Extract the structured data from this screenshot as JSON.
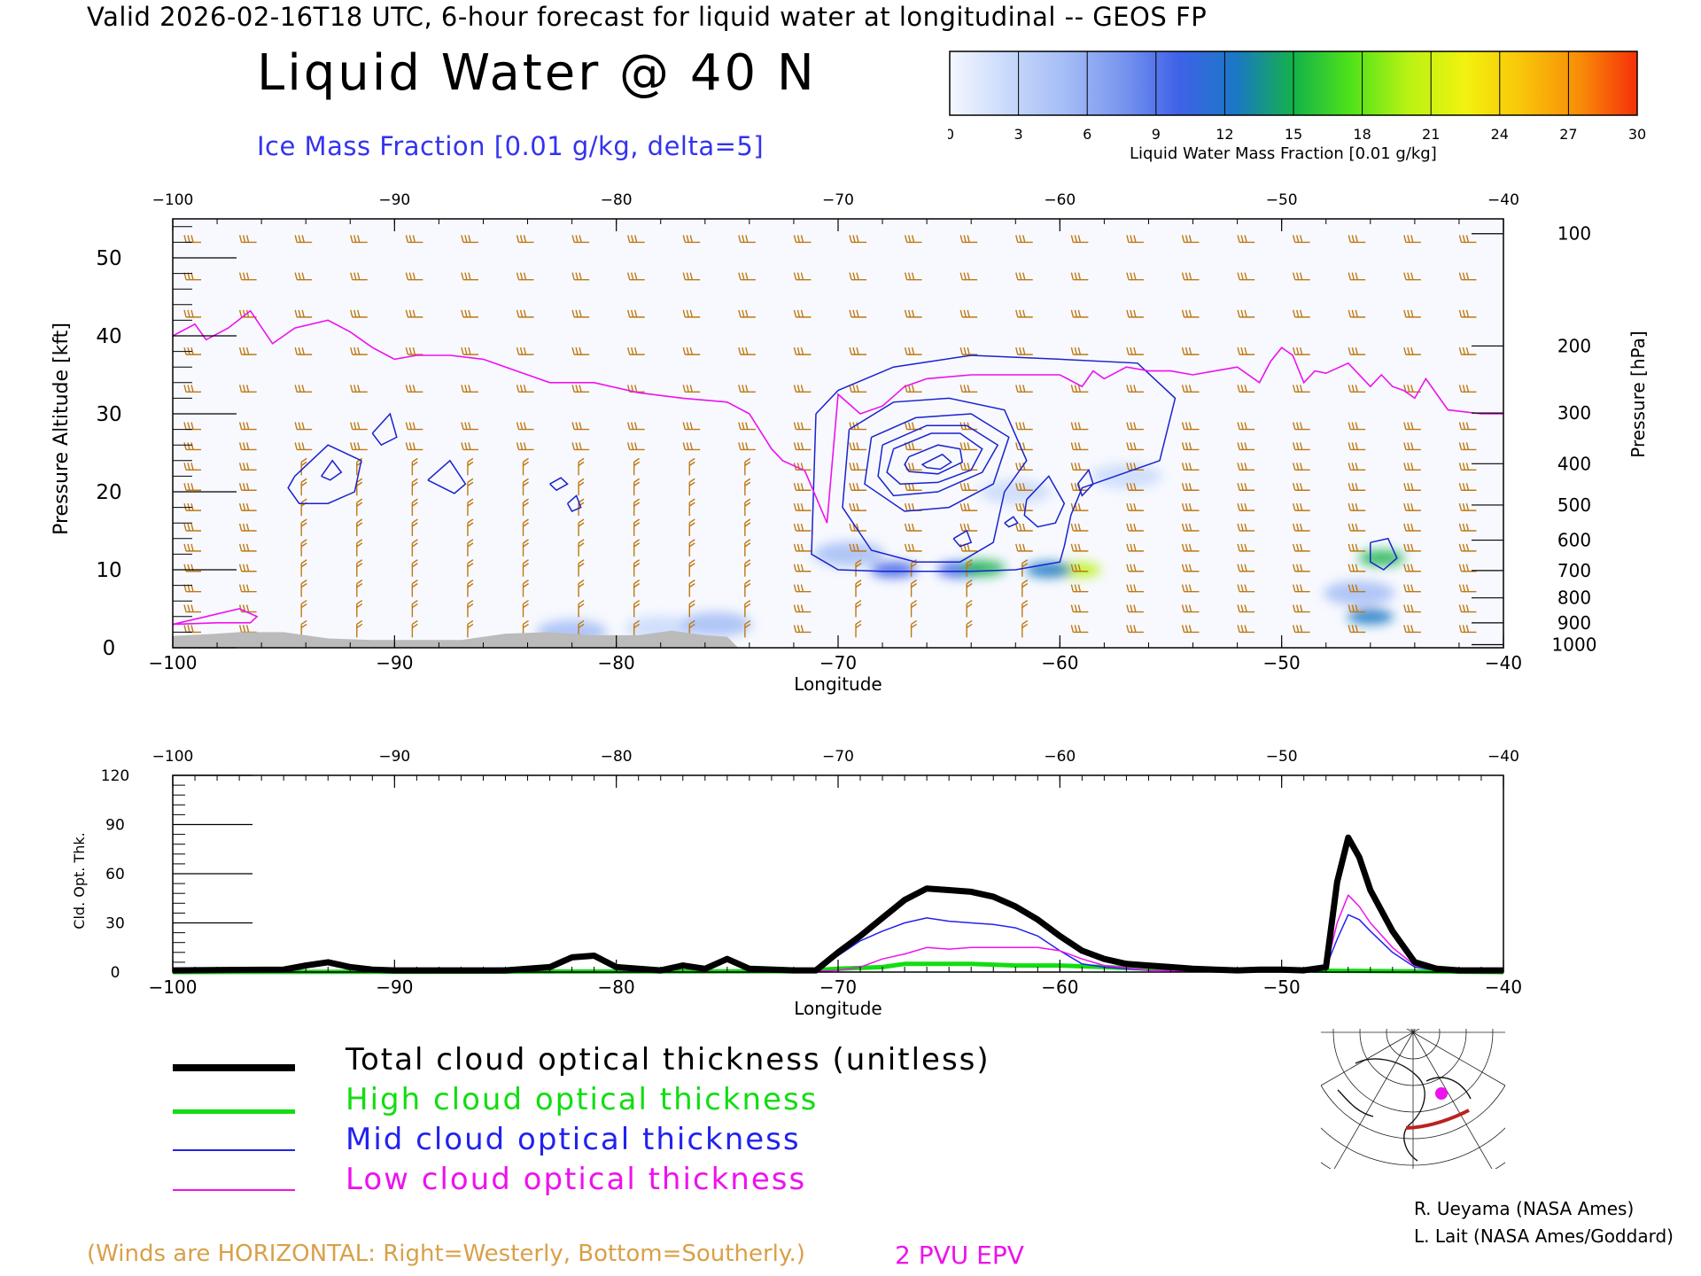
{
  "header": {
    "valid_title": "Valid 2026-02-16T18 UTC, 6-hour forecast for liquid water at longitudinal -- GEOS FP",
    "main_title": "Liquid Water @ 40 N",
    "ice_label": "Ice Mass Fraction [0.01 g/kg, delta=5]"
  },
  "colorbar": {
    "ticks": [
      "0",
      "3",
      "6",
      "9",
      "12",
      "15",
      "18",
      "21",
      "24",
      "27",
      "30"
    ],
    "label": "Liquid Water Mass Fraction [0.01 g/kg]",
    "colors": [
      "#f4f7fe",
      "#c9dafb",
      "#a5bdf6",
      "#7996ef",
      "#3f62e8",
      "#1a78c4",
      "#14b24a",
      "#4fe21a",
      "#b9f214",
      "#f2f20e",
      "#f9c40a",
      "#f88c07",
      "#f5300a"
    ]
  },
  "colors": {
    "wind_barb": "#c07812",
    "epv": "#ee11ee",
    "ice_contour": "#1a22cc",
    "terrain": "#bbbbbb"
  },
  "chart_data": [
    {
      "type": "heatmap",
      "name": "liquid-water-cross-section",
      "title": "Liquid Water @ 40 N",
      "xlabel": "Longitude",
      "ylabel": "Pressure Altitude [kft]",
      "ylabel_right": "Pressure [hPa]",
      "xlim": [
        -100,
        -40
      ],
      "ylim": [
        0,
        55
      ],
      "x_ticks": [
        "-100",
        "-90",
        "-80",
        "-70",
        "-60",
        "-50",
        "-40"
      ],
      "y_ticks": [
        "0",
        "10",
        "20",
        "30",
        "40",
        "50"
      ],
      "pressure_ticks": [
        "100",
        "200",
        "300",
        "400",
        "500",
        "600",
        "700",
        "800",
        "900",
        "1000"
      ],
      "pressure_tick_kft": [
        53.1,
        38.7,
        30.1,
        23.6,
        18.3,
        13.8,
        9.9,
        6.4,
        3.2,
        0.4
      ],
      "liquid_water_blobs": [
        {
          "lon": -64.5,
          "kft": 10.0,
          "value": 10
        },
        {
          "lon": -63.5,
          "kft": 10.2,
          "value": 15
        },
        {
          "lon": -59.2,
          "kft": 10.0,
          "value": 20
        },
        {
          "lon": -60.5,
          "kft": 10.0,
          "value": 13
        },
        {
          "lon": -67.5,
          "kft": 10.0,
          "value": 9
        },
        {
          "lon": -69.5,
          "kft": 12.0,
          "value": 5
        },
        {
          "lon": -62.0,
          "kft": 20.0,
          "value": 3
        },
        {
          "lon": -57.0,
          "kft": 22.0,
          "value": 2
        },
        {
          "lon": -45.5,
          "kft": 11.5,
          "value": 14
        },
        {
          "lon": -46.0,
          "kft": 4.0,
          "value": 13
        },
        {
          "lon": -46.5,
          "kft": 7.0,
          "value": 5
        },
        {
          "lon": -78.0,
          "kft": 2.5,
          "value": 3
        },
        {
          "lon": -82.0,
          "kft": 2.0,
          "value": 4
        },
        {
          "lon": -75.5,
          "kft": 3.0,
          "value": 4
        }
      ],
      "epv_2pvu_line": {
        "x": [
          -100,
          -99,
          -98.5,
          -97.5,
          -96.5,
          -95.5,
          -94.5,
          -93,
          -92,
          -91,
          -90,
          -89,
          -87.5,
          -86,
          -84.5,
          -83,
          -81,
          -79,
          -77,
          -75,
          -74,
          -73,
          -72.5,
          -71.5,
          -70.5,
          -70,
          -69,
          -68,
          -67,
          -66,
          -64,
          -62,
          -60,
          -59,
          -58.5,
          -58,
          -57,
          -56,
          -55,
          -54,
          -53,
          -52,
          -51,
          -50.5,
          -50,
          -49.5,
          -49,
          -48.5,
          -48,
          -47,
          -46,
          -45.5,
          -45,
          -44.5,
          -44,
          -43.5,
          -42.5,
          -41,
          -40
        ],
        "y": [
          40,
          41.5,
          39.5,
          41,
          43.2,
          39,
          41,
          42,
          40.5,
          38.5,
          37,
          37.5,
          37.5,
          37,
          35.5,
          34,
          34,
          32.7,
          32,
          31.5,
          30,
          25.5,
          24,
          22.7,
          16,
          32.5,
          30,
          31,
          33.5,
          34.5,
          35,
          35,
          35,
          33.5,
          35.5,
          34.5,
          36,
          35.5,
          35.5,
          35,
          35.5,
          36,
          34,
          36.7,
          38.5,
          37.5,
          34,
          35.5,
          35.2,
          36.5,
          33.5,
          35,
          33.5,
          33,
          32,
          34.5,
          30.5,
          30,
          30
        ]
      },
      "epv_low_branch": {
        "x": [
          -100,
          -98.5,
          -97,
          -96.2,
          -96.5,
          -98,
          -100
        ],
        "y": [
          3,
          4,
          5,
          4,
          3.2,
          3.2,
          3
        ]
      },
      "terrain": {
        "x": [
          -100,
          -98,
          -97,
          -95,
          -93,
          -91,
          -89,
          -87,
          -85,
          -83,
          -81,
          -79,
          -77.5,
          -76,
          -75,
          -74.5
        ],
        "y": [
          1.5,
          1.8,
          2.0,
          2.0,
          1.2,
          1.0,
          1.0,
          1.0,
          1.8,
          2.0,
          1.6,
          1.6,
          2.2,
          1.6,
          1.4,
          0
        ]
      },
      "ice_contours": [
        {
          "x": [
            -94.5,
            -93,
            -91.5,
            -91.8,
            -93,
            -94.3,
            -94.8,
            -94.5
          ],
          "y": [
            22,
            26,
            24,
            20,
            18.5,
            18.5,
            20.5,
            22
          ]
        },
        {
          "x": [
            -93.3,
            -92.8,
            -92.4,
            -92.9,
            -93.3
          ],
          "y": [
            22,
            24,
            22.5,
            21.5,
            22
          ]
        },
        {
          "x": [
            -91,
            -90.2,
            -89.9,
            -90.6,
            -91
          ],
          "y": [
            27.5,
            30,
            27,
            26,
            27.5
          ]
        },
        {
          "x": [
            -88.5,
            -87.5,
            -86.8,
            -87.3,
            -88.5
          ],
          "y": [
            21.5,
            24,
            21,
            19.8,
            21.5
          ]
        },
        {
          "x": [
            -83,
            -82.5,
            -82.2,
            -82.7,
            -83
          ],
          "y": [
            21,
            21.8,
            21,
            20.2,
            21
          ]
        },
        {
          "x": [
            -82.2,
            -81.8,
            -81.6,
            -82.0,
            -82.2
          ],
          "y": [
            18.5,
            19.5,
            18,
            17.5,
            18.5
          ]
        },
        {
          "x": [
            -71,
            -70,
            -67.5,
            -64,
            -60,
            -56.5,
            -54.8,
            -55.5,
            -59,
            -59.5,
            -59.8,
            -60,
            -62,
            -64,
            -66,
            -68,
            -70,
            -71.2,
            -71
          ],
          "y": [
            30,
            33,
            36,
            37.5,
            37,
            36.5,
            32,
            24,
            20.5,
            17,
            13,
            11,
            10,
            9.8,
            9.8,
            9.8,
            10,
            12,
            30
          ]
        },
        {
          "x": [
            -69.5,
            -67.5,
            -65,
            -62.5,
            -61.5,
            -62.5,
            -63,
            -64.5,
            -66.5,
            -68.5,
            -69.8,
            -69.5
          ],
          "y": [
            28,
            31.5,
            32,
            30.5,
            24,
            20,
            13.5,
            11,
            11,
            12.5,
            18,
            28
          ]
        },
        {
          "x": [
            -68.5,
            -66.5,
            -64,
            -62.3,
            -63,
            -65,
            -67,
            -68.8,
            -68.5
          ],
          "y": [
            27,
            29.5,
            30,
            27,
            21,
            18,
            17.5,
            21,
            27
          ]
        },
        {
          "x": [
            -68,
            -66,
            -64.2,
            -62.8,
            -63.5,
            -65.5,
            -67.5,
            -68.2,
            -68
          ],
          "y": [
            26,
            28.5,
            28.5,
            26,
            22.5,
            20,
            19.5,
            22,
            26
          ]
        },
        {
          "x": [
            -67.5,
            -65.8,
            -64.5,
            -63.5,
            -64,
            -65.5,
            -67.2,
            -67.8,
            -67.5
          ],
          "y": [
            25.5,
            27.5,
            27.5,
            25.5,
            22.8,
            21.2,
            21,
            22.5,
            25.5
          ]
        },
        {
          "x": [
            -66.8,
            -65.5,
            -64.5,
            -64.4,
            -65.5,
            -66.8,
            -67,
            -66.8
          ],
          "y": [
            24.5,
            26,
            25.5,
            23.8,
            22.3,
            22.6,
            23.5,
            24.5
          ]
        },
        {
          "x": [
            -66,
            -65.3,
            -64.9,
            -65.4,
            -66,
            -66.2,
            -66
          ],
          "y": [
            23.8,
            24.8,
            23.8,
            22.9,
            23.1,
            23.5,
            23.8
          ]
        },
        {
          "x": [
            -61.5,
            -60.5,
            -59.8,
            -60.2,
            -61,
            -61.6,
            -61.5
          ],
          "y": [
            19,
            22,
            18.5,
            16,
            15.5,
            17,
            19
          ]
        },
        {
          "x": [
            -62.5,
            -62.1,
            -61.9,
            -62.3,
            -62.5
          ],
          "y": [
            16,
            16.8,
            16,
            15.5,
            16
          ]
        },
        {
          "x": [
            -64.8,
            -64.2,
            -64,
            -64.5,
            -64.8
          ],
          "y": [
            14,
            15,
            13.5,
            13,
            14
          ]
        },
        {
          "x": [
            -59.2,
            -58.7,
            -58.5,
            -59,
            -59.2
          ],
          "y": [
            21,
            22.8,
            21,
            19.5,
            21
          ]
        },
        {
          "x": [
            -46,
            -45.2,
            -44.8,
            -45.4,
            -46,
            -46,
            -46
          ],
          "y": [
            13.5,
            14,
            11.5,
            10,
            11,
            12.5,
            13.5
          ]
        }
      ]
    },
    {
      "type": "line",
      "name": "cloud-optical-thickness",
      "xlabel": "Longitude",
      "ylabel": "Cld. Opt. Thk.",
      "xlim": [
        -100,
        -40
      ],
      "ylim": [
        0,
        120
      ],
      "x_ticks": [
        "-100",
        "-90",
        "-80",
        "-70",
        "-60",
        "-50",
        "-40"
      ],
      "y_ticks": [
        "0",
        "30",
        "60",
        "90",
        "120"
      ],
      "series": [
        {
          "name": "Total cloud optical thickness (unitless)",
          "color": "#000000",
          "x": [
            -100,
            -95,
            -94,
            -93,
            -92,
            -91,
            -90,
            -85,
            -83,
            -82,
            -81,
            -80,
            -78,
            -77,
            -76,
            -75,
            -74,
            -72,
            -71,
            -70,
            -69,
            -68,
            -67,
            -66,
            -65,
            -64,
            -63,
            -62,
            -61,
            -60,
            -59,
            -58,
            -57,
            -56,
            -55,
            -54,
            -53,
            -52,
            -51,
            -50,
            -49,
            -48,
            -47.5,
            -47,
            -46.5,
            -46,
            -45,
            -44,
            -43,
            -42,
            -40
          ],
          "y": [
            1,
            1.5,
            4,
            6,
            3,
            1.5,
            1,
            1,
            3,
            9,
            10,
            3,
            1,
            4,
            2,
            8,
            2,
            1,
            1,
            12,
            22,
            33,
            44,
            51,
            50,
            49,
            46,
            40,
            32,
            22,
            13,
            8,
            5,
            4,
            3,
            2,
            1.5,
            1,
            1.5,
            1.5,
            1,
            3,
            55,
            82,
            70,
            50,
            25,
            6,
            2,
            1,
            1
          ]
        },
        {
          "name": "High cloud optical thickness",
          "color": "#11dd11",
          "x": [
            -100,
            -72,
            -70,
            -68,
            -67,
            -66,
            -64,
            -62,
            -60,
            -58,
            -56,
            -50,
            -40
          ],
          "y": [
            0,
            0.5,
            2,
            3,
            5,
            5,
            5,
            4,
            4,
            3,
            2,
            1,
            0
          ]
        },
        {
          "name": "Mid cloud optical thickness",
          "color": "#2222ee",
          "x": [
            -100,
            -95,
            -94,
            -93,
            -92,
            -91,
            -90,
            -83,
            -82,
            -81,
            -80,
            -78,
            -77,
            -76,
            -75,
            -74,
            -72,
            -71,
            -70,
            -69,
            -68,
            -67,
            -66,
            -65,
            -64,
            -63,
            -62,
            -61,
            -60,
            -59,
            -58,
            -57,
            -56,
            -52,
            -48,
            -47.5,
            -47,
            -46.5,
            -46,
            -45,
            -44,
            -43,
            -40
          ],
          "y": [
            1,
            1.5,
            4,
            6,
            3,
            1.5,
            1,
            3,
            9,
            10,
            3,
            1,
            4,
            2,
            8,
            2,
            1,
            1,
            10,
            19,
            25,
            30,
            33,
            31,
            30,
            29,
            27,
            22,
            13,
            5,
            3,
            2,
            1,
            1,
            3,
            20,
            35,
            32,
            25,
            12,
            3,
            1,
            1
          ]
        },
        {
          "name": "Low cloud optical thickness",
          "color": "#ee11ee",
          "x": [
            -100,
            -72,
            -70,
            -69,
            -68,
            -67,
            -66,
            -65,
            -64,
            -63,
            -62,
            -61,
            -60,
            -59,
            -58,
            -56,
            -52,
            -48,
            -47.5,
            -47,
            -46.5,
            -46,
            -45,
            -44,
            -43,
            -40
          ],
          "y": [
            0,
            0,
            1,
            3,
            8,
            11,
            15,
            14,
            15,
            15,
            15,
            15,
            13,
            8,
            4,
            1,
            0,
            2,
            30,
            47,
            40,
            30,
            15,
            4,
            1,
            0
          ]
        }
      ]
    }
  ],
  "legend": {
    "items": [
      {
        "label": "Total cloud optical thickness (unitless)",
        "color": "#000000"
      },
      {
        "label": "High cloud optical thickness",
        "color": "#11dd11"
      },
      {
        "label": "Mid cloud optical thickness",
        "color": "#2222ee"
      },
      {
        "label": "Low cloud optical thickness",
        "color": "#ee11ee"
      }
    ]
  },
  "footer": {
    "winds_note": "(Winds are HORIZONTAL: Right=Westerly, Bottom=Southerly.)",
    "pvu_note": "2 PVU EPV",
    "credit_1": "R. Ueyama (NASA Ames)",
    "credit_2": "L. Lait (NASA Ames/Goddard)"
  },
  "inset_map": {
    "name": "location-map",
    "marker_color": "#ee11ee",
    "track_color": "#bb2222"
  }
}
